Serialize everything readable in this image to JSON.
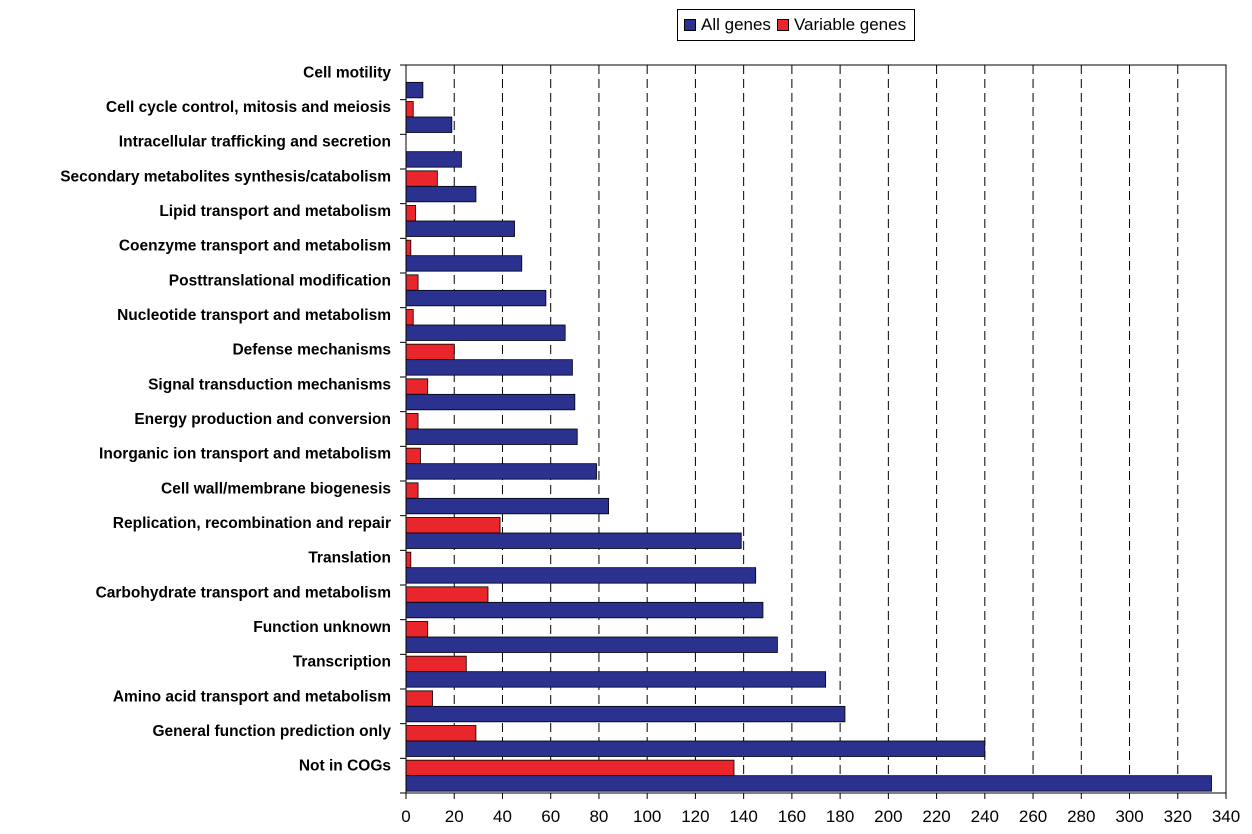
{
  "chart_data": {
    "type": "bar",
    "orientation": "horizontal",
    "categories": [
      "Cell motility",
      "Cell cycle control, mitosis and meiosis",
      "Intracellular trafficking and secretion",
      "Secondary metabolites synthesis/catabolism",
      "Lipid transport and metabolism",
      "Coenzyme transport and metabolism",
      "Posttranslational modification",
      "Nucleotide transport and metabolism",
      "Defense mechanisms",
      "Signal transduction mechanisms",
      "Energy production and conversion",
      "Inorganic ion transport and metabolism",
      "Cell wall/membrane biogenesis",
      "Replication, recombination and repair",
      "Translation",
      "Carbohydrate transport and metabolism",
      "Function unknown",
      "Transcription",
      "Amino acid transport and metabolism",
      "General function prediction only",
      "Not in COGs"
    ],
    "series": [
      {
        "name": "All genes",
        "color": "#2b318f",
        "values": [
          7,
          19,
          23,
          29,
          45,
          48,
          58,
          66,
          69,
          70,
          71,
          79,
          84,
          139,
          145,
          148,
          154,
          174,
          182,
          240,
          334
        ]
      },
      {
        "name": "Variable genes",
        "color": "#e8262b",
        "values": [
          0,
          3,
          0,
          13,
          4,
          2,
          5,
          3,
          20,
          9,
          5,
          6,
          5,
          39,
          2,
          34,
          9,
          25,
          11,
          29,
          136
        ]
      }
    ],
    "xlim": [
      0,
      340
    ],
    "xticks": [
      "0",
      "20",
      "40",
      "60",
      "80",
      "100",
      "120",
      "140",
      "160",
      "180",
      "200",
      "220",
      "240",
      "260",
      "280",
      "300",
      "320",
      "340"
    ],
    "grid": "vertical-dashed",
    "legend_position": "top-right",
    "title": "",
    "xlabel": "",
    "ylabel": ""
  }
}
